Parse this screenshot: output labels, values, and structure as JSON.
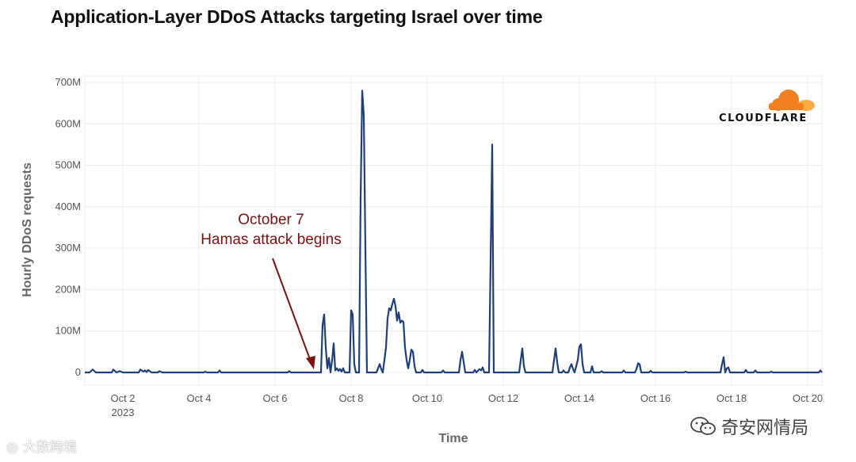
{
  "title": "Application-Layer DDoS Attacks targeting Israel over time",
  "logo_text": "CLOUDFLARE",
  "watermarks": {
    "left": "大数跨境",
    "right": "奇安网情局"
  },
  "colors": {
    "line": "#1f3f7a",
    "annotation": "#7a1212",
    "logo_orange": "#f38020",
    "logo_light": "#fbad41",
    "grid": "#ececec"
  },
  "chart_data": {
    "type": "line",
    "title": "Application-Layer DDoS Attacks targeting Israel over time",
    "xlabel": "Time",
    "ylabel": "Hourly DDoS requests",
    "x_unit": "date (2023)",
    "xlim": [
      "2023-10-01T00:00",
      "2023-10-20T09:00"
    ],
    "ylim": [
      0,
      710
    ],
    "y_unit": "millions of requests",
    "y_ticks": [
      {
        "value": 0,
        "label": "0"
      },
      {
        "value": 100,
        "label": "100M"
      },
      {
        "value": 200,
        "label": "200M"
      },
      {
        "value": 300,
        "label": "300M"
      },
      {
        "value": 400,
        "label": "400M"
      },
      {
        "value": 500,
        "label": "500M"
      },
      {
        "value": 600,
        "label": "600M"
      },
      {
        "value": 700,
        "label": "700M"
      }
    ],
    "x_ticks": [
      {
        "value": "2023-10-02",
        "label": "Oct 2",
        "sublabel": "2023"
      },
      {
        "value": "2023-10-04",
        "label": "Oct 4"
      },
      {
        "value": "2023-10-06",
        "label": "Oct 6"
      },
      {
        "value": "2023-10-08",
        "label": "Oct 8"
      },
      {
        "value": "2023-10-10",
        "label": "Oct 10"
      },
      {
        "value": "2023-10-12",
        "label": "Oct 12"
      },
      {
        "value": "2023-10-14",
        "label": "Oct 14"
      },
      {
        "value": "2023-10-16",
        "label": "Oct 16"
      },
      {
        "value": "2023-10-18",
        "label": "Oct 18"
      },
      {
        "value": "2023-10-20",
        "label": "Oct 20"
      }
    ],
    "grid": true,
    "legend": "none",
    "annotation": {
      "lines": [
        "October 7",
        "Hamas attack begins"
      ],
      "points_to": "2023-10-07T04:00"
    },
    "series": [
      {
        "points": [
          [
            "2023-10-01T00:00",
            0
          ],
          [
            "2023-10-01T03:00",
            0
          ],
          [
            "2023-10-01T05:00",
            7
          ],
          [
            "2023-10-01T07:00",
            0
          ],
          [
            "2023-10-01T17:00",
            0
          ],
          [
            "2023-10-01T18:00",
            7
          ],
          [
            "2023-10-01T20:00",
            0
          ],
          [
            "2023-10-01T22:00",
            3
          ],
          [
            "2023-10-02T00:00",
            0
          ],
          [
            "2023-10-02T10:00",
            0
          ],
          [
            "2023-10-02T11:00",
            7
          ],
          [
            "2023-10-02T13:00",
            2
          ],
          [
            "2023-10-02T14:00",
            5
          ],
          [
            "2023-10-02T15:00",
            1
          ],
          [
            "2023-10-02T16:00",
            6
          ],
          [
            "2023-10-02T18:00",
            0
          ],
          [
            "2023-10-02T22:00",
            0
          ],
          [
            "2023-10-02T23:00",
            3
          ],
          [
            "2023-10-03T01:00",
            0
          ],
          [
            "2023-10-04T03:00",
            0
          ],
          [
            "2023-10-04T04:00",
            2
          ],
          [
            "2023-10-04T05:00",
            0
          ],
          [
            "2023-10-04T12:00",
            0
          ],
          [
            "2023-10-04T13:00",
            5
          ],
          [
            "2023-10-04T14:00",
            0
          ],
          [
            "2023-10-06T08:00",
            0
          ],
          [
            "2023-10-06T09:00",
            3
          ],
          [
            "2023-10-06T10:00",
            0
          ],
          [
            "2023-10-07T05:00",
            0
          ],
          [
            "2023-10-07T06:00",
            115
          ],
          [
            "2023-10-07T07:00",
            140
          ],
          [
            "2023-10-07T08:00",
            60
          ],
          [
            "2023-10-07T09:00",
            10
          ],
          [
            "2023-10-07T10:00",
            35
          ],
          [
            "2023-10-07T11:00",
            0
          ],
          [
            "2023-10-07T12:00",
            30
          ],
          [
            "2023-10-07T13:00",
            70
          ],
          [
            "2023-10-07T14:00",
            5
          ],
          [
            "2023-10-07T15:00",
            10
          ],
          [
            "2023-10-07T16:00",
            4
          ],
          [
            "2023-10-07T17:00",
            8
          ],
          [
            "2023-10-07T18:00",
            2
          ],
          [
            "2023-10-07T19:00",
            10
          ],
          [
            "2023-10-07T20:00",
            0
          ],
          [
            "2023-10-07T23:00",
            0
          ],
          [
            "2023-10-08T00:00",
            150
          ],
          [
            "2023-10-08T01:00",
            140
          ],
          [
            "2023-10-08T02:00",
            20
          ],
          [
            "2023-10-08T03:00",
            0
          ],
          [
            "2023-10-08T05:00",
            0
          ],
          [
            "2023-10-08T06:00",
            420
          ],
          [
            "2023-10-08T07:00",
            680
          ],
          [
            "2023-10-08T08:00",
            620
          ],
          [
            "2023-10-08T09:00",
            300
          ],
          [
            "2023-10-08T10:00",
            0
          ],
          [
            "2023-10-08T16:00",
            0
          ],
          [
            "2023-10-08T17:00",
            10
          ],
          [
            "2023-10-08T18:00",
            20
          ],
          [
            "2023-10-08T19:00",
            8
          ],
          [
            "2023-10-08T20:00",
            0
          ],
          [
            "2023-10-08T22:00",
            60
          ],
          [
            "2023-10-08T23:00",
            130
          ],
          [
            "2023-10-09T00:00",
            155
          ],
          [
            "2023-10-09T01:00",
            150
          ],
          [
            "2023-10-09T02:00",
            165
          ],
          [
            "2023-10-09T03:00",
            178
          ],
          [
            "2023-10-09T04:00",
            160
          ],
          [
            "2023-10-09T05:00",
            125
          ],
          [
            "2023-10-09T06:00",
            145
          ],
          [
            "2023-10-09T07:00",
            120
          ],
          [
            "2023-10-09T08:00",
            125
          ],
          [
            "2023-10-09T09:00",
            122
          ],
          [
            "2023-10-09T10:00",
            60
          ],
          [
            "2023-10-09T11:00",
            30
          ],
          [
            "2023-10-09T12:00",
            10
          ],
          [
            "2023-10-09T13:00",
            30
          ],
          [
            "2023-10-09T14:00",
            55
          ],
          [
            "2023-10-09T15:00",
            50
          ],
          [
            "2023-10-09T16:00",
            15
          ],
          [
            "2023-10-09T17:00",
            0
          ],
          [
            "2023-10-09T20:00",
            0
          ],
          [
            "2023-10-09T21:00",
            6
          ],
          [
            "2023-10-09T22:00",
            0
          ],
          [
            "2023-10-10T09:00",
            0
          ],
          [
            "2023-10-10T10:00",
            5
          ],
          [
            "2023-10-10T11:00",
            0
          ],
          [
            "2023-10-10T20:00",
            0
          ],
          [
            "2023-10-10T21:00",
            30
          ],
          [
            "2023-10-10T22:00",
            50
          ],
          [
            "2023-10-10T23:00",
            25
          ],
          [
            "2023-10-11T00:00",
            0
          ],
          [
            "2023-10-11T05:00",
            0
          ],
          [
            "2023-10-11T06:00",
            6
          ],
          [
            "2023-10-11T07:00",
            0
          ],
          [
            "2023-10-11T09:00",
            8
          ],
          [
            "2023-10-11T10:00",
            5
          ],
          [
            "2023-10-11T11:00",
            12
          ],
          [
            "2023-10-11T12:00",
            0
          ],
          [
            "2023-10-11T15:00",
            0
          ],
          [
            "2023-10-11T16:00",
            270
          ],
          [
            "2023-10-11T17:00",
            550
          ],
          [
            "2023-10-11T18:00",
            0
          ],
          [
            "2023-10-12T10:00",
            0
          ],
          [
            "2023-10-12T11:00",
            30
          ],
          [
            "2023-10-12T12:00",
            58
          ],
          [
            "2023-10-12T13:00",
            15
          ],
          [
            "2023-10-12T14:00",
            0
          ],
          [
            "2023-10-13T07:00",
            0
          ],
          [
            "2023-10-13T08:00",
            30
          ],
          [
            "2023-10-13T09:00",
            58
          ],
          [
            "2023-10-13T10:00",
            25
          ],
          [
            "2023-10-13T11:00",
            0
          ],
          [
            "2023-10-13T13:00",
            0
          ],
          [
            "2023-10-13T14:00",
            5
          ],
          [
            "2023-10-13T15:00",
            0
          ],
          [
            "2023-10-13T17:00",
            0
          ],
          [
            "2023-10-13T18:00",
            12
          ],
          [
            "2023-10-13T19:00",
            20
          ],
          [
            "2023-10-13T20:00",
            8
          ],
          [
            "2023-10-13T21:00",
            0
          ],
          [
            "2023-10-13T23:00",
            30
          ],
          [
            "2023-10-14T00:00",
            62
          ],
          [
            "2023-10-14T01:00",
            68
          ],
          [
            "2023-10-14T02:00",
            20
          ],
          [
            "2023-10-14T03:00",
            0
          ],
          [
            "2023-10-14T07:00",
            0
          ],
          [
            "2023-10-14T08:00",
            15
          ],
          [
            "2023-10-14T09:00",
            0
          ],
          [
            "2023-10-14T13:00",
            0
          ],
          [
            "2023-10-14T14:00",
            3
          ],
          [
            "2023-10-14T15:00",
            0
          ],
          [
            "2023-10-15T03:00",
            0
          ],
          [
            "2023-10-15T04:00",
            5
          ],
          [
            "2023-10-15T05:00",
            0
          ],
          [
            "2023-10-15T11:00",
            0
          ],
          [
            "2023-10-15T12:00",
            8
          ],
          [
            "2023-10-15T13:00",
            22
          ],
          [
            "2023-10-15T14:00",
            20
          ],
          [
            "2023-10-15T15:00",
            0
          ],
          [
            "2023-10-15T20:00",
            0
          ],
          [
            "2023-10-15T21:00",
            4
          ],
          [
            "2023-10-15T22:00",
            0
          ],
          [
            "2023-10-16T18:00",
            0
          ],
          [
            "2023-10-16T19:00",
            2
          ],
          [
            "2023-10-16T20:00",
            0
          ],
          [
            "2023-10-17T17:00",
            0
          ],
          [
            "2023-10-17T18:00",
            20
          ],
          [
            "2023-10-17T19:00",
            37
          ],
          [
            "2023-10-17T20:00",
            0
          ],
          [
            "2023-10-17T21:00",
            10
          ],
          [
            "2023-10-17T22:00",
            12
          ],
          [
            "2023-10-17T23:00",
            0
          ],
          [
            "2023-10-18T08:00",
            0
          ],
          [
            "2023-10-18T09:00",
            6
          ],
          [
            "2023-10-18T10:00",
            0
          ],
          [
            "2023-10-18T14:00",
            0
          ],
          [
            "2023-10-18T15:00",
            5
          ],
          [
            "2023-10-18T16:00",
            0
          ],
          [
            "2023-10-19T00:00",
            0
          ],
          [
            "2023-10-19T01:00",
            2
          ],
          [
            "2023-10-19T02:00",
            0
          ],
          [
            "2023-10-20T07:00",
            0
          ],
          [
            "2023-10-20T08:00",
            5
          ],
          [
            "2023-10-20T09:00",
            0
          ]
        ]
      }
    ]
  }
}
